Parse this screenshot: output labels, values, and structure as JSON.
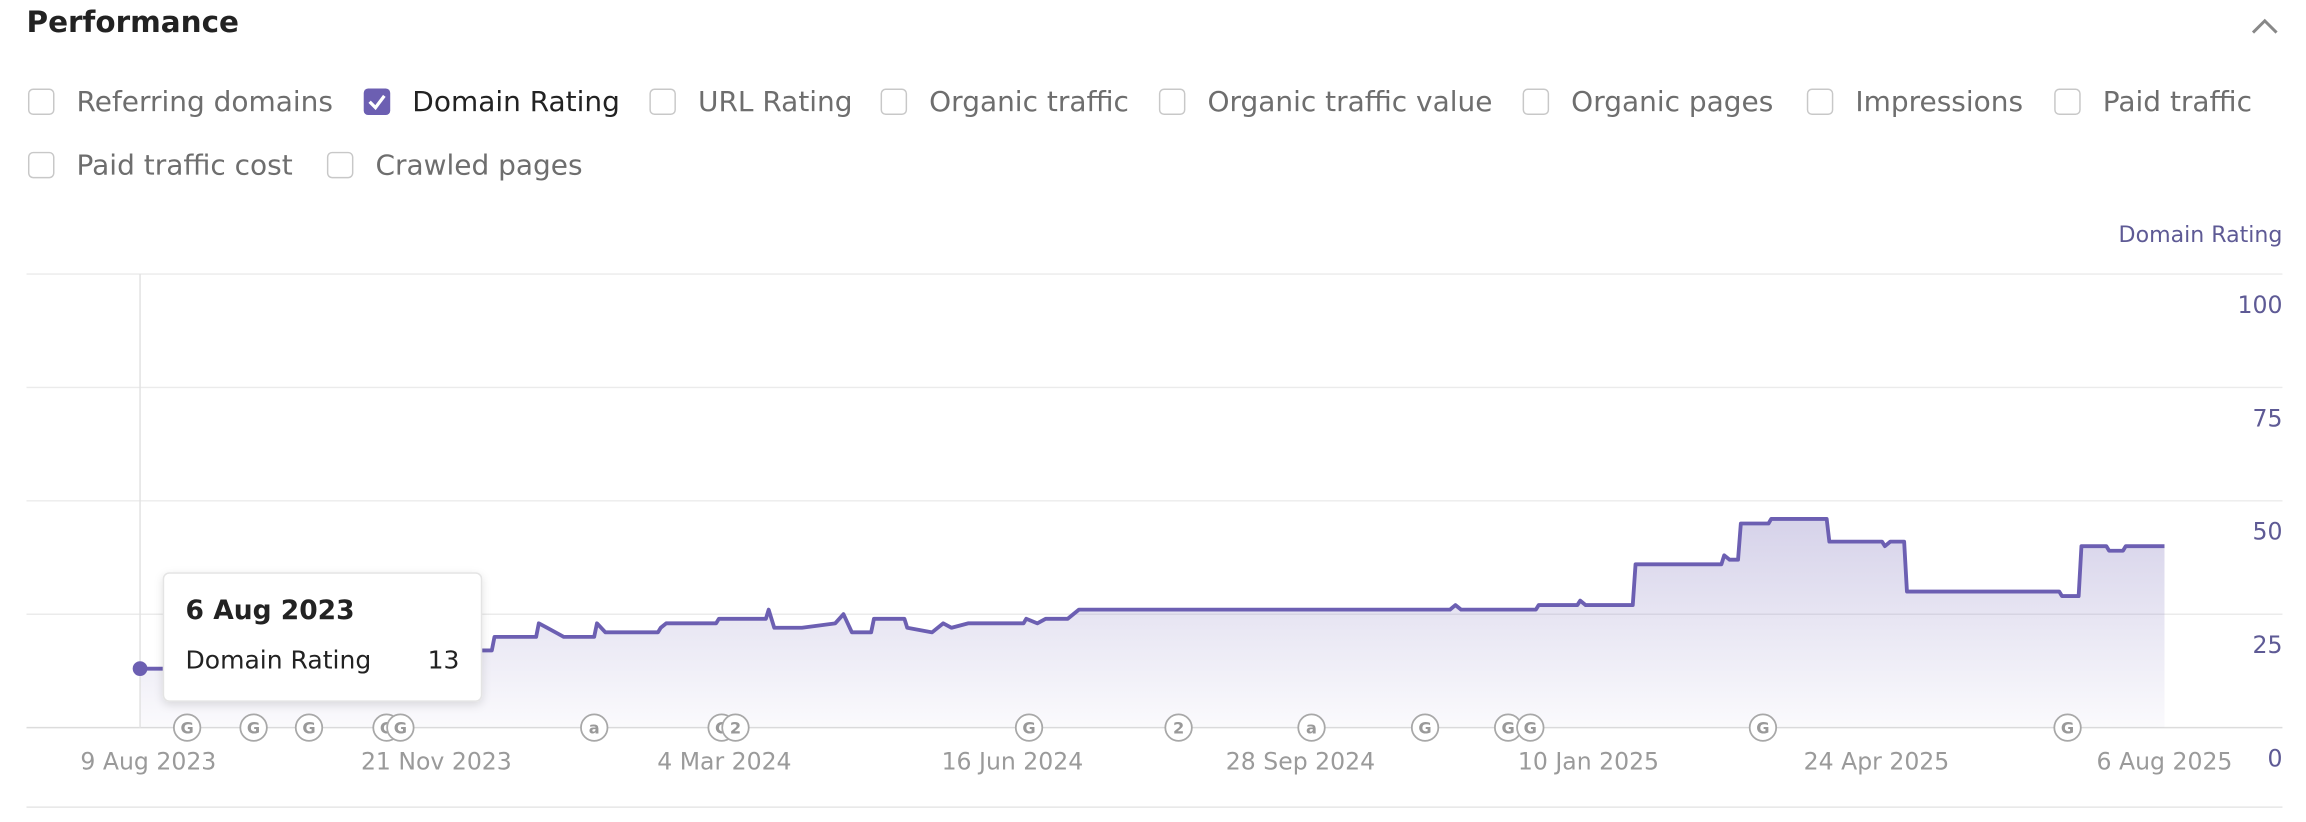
{
  "header": {
    "title": "Performance"
  },
  "toggles": [
    {
      "label": "Referring domains",
      "checked": false
    },
    {
      "label": "Domain Rating",
      "checked": true
    },
    {
      "label": "URL Rating",
      "checked": false
    },
    {
      "label": "Organic traffic",
      "checked": false
    },
    {
      "label": "Organic traffic value",
      "checked": false
    },
    {
      "label": "Organic pages",
      "checked": false
    },
    {
      "label": "Impressions",
      "checked": false
    },
    {
      "label": "Paid traffic",
      "checked": false
    },
    {
      "label": "Paid traffic cost",
      "checked": false
    },
    {
      "label": "Crawled pages",
      "checked": false
    }
  ],
  "tooltip": {
    "title": "6 Aug 2023",
    "label": "Domain Rating"
  },
  "chart_data": {
    "type": "line",
    "y_axis_label": "Domain Rating",
    "xlim": [
      "2023-06-26",
      "2025-08-22"
    ],
    "xticks": [
      {
        "value": "2023-08-09",
        "label": "9 Aug 2023"
      },
      {
        "value": "2023-11-21",
        "label": "21 Nov 2023"
      },
      {
        "value": "2024-03-04",
        "label": "4 Mar 2024"
      },
      {
        "value": "2024-06-16",
        "label": "16 Jun 2024"
      },
      {
        "value": "2024-09-28",
        "label": "28 Sep 2024"
      },
      {
        "value": "2025-01-10",
        "label": "10 Jan 2025"
      },
      {
        "value": "2025-04-24",
        "label": "24 Apr 2025"
      },
      {
        "value": "2025-08-06",
        "label": "6 Aug 2025"
      }
    ],
    "ylim": [
      0,
      100
    ],
    "yticks": [
      0,
      25,
      50,
      75,
      100
    ],
    "grid": true,
    "x": [
      "2023-08-06",
      "2023-11-25",
      "2023-11-26",
      "2023-12-11",
      "2023-12-12",
      "2023-12-27",
      "2023-12-28",
      "2023-12-31",
      "2024-01-06",
      "2024-01-17",
      "2024-01-18",
      "2024-01-21",
      "2024-02-09",
      "2024-02-10",
      "2024-02-12",
      "2024-03-01",
      "2024-03-02",
      "2024-03-19",
      "2024-03-20",
      "2024-03-22",
      "2024-04-01",
      "2024-04-13",
      "2024-04-16",
      "2024-04-19",
      "2024-04-26",
      "2024-04-27",
      "2024-05-08",
      "2024-05-09",
      "2024-05-18",
      "2024-05-22",
      "2024-05-25",
      "2024-05-31",
      "2024-06-20",
      "2024-06-21",
      "2024-06-25",
      "2024-06-28",
      "2024-07-06",
      "2024-07-10",
      "2024-11-21",
      "2024-11-23",
      "2024-11-25",
      "2024-12-22",
      "2024-12-23",
      "2025-01-06",
      "2025-01-07",
      "2025-01-09",
      "2025-01-26",
      "2025-01-27",
      "2025-02-27",
      "2025-02-28",
      "2025-03-02",
      "2025-03-05",
      "2025-03-06",
      "2025-03-16",
      "2025-03-17",
      "2025-04-06",
      "2025-04-07",
      "2025-04-26",
      "2025-04-27",
      "2025-04-29",
      "2025-05-04",
      "2025-05-05",
      "2025-06-29",
      "2025-06-30",
      "2025-07-06",
      "2025-07-07",
      "2025-07-16",
      "2025-07-17",
      "2025-07-22",
      "2025-07-23",
      "2025-08-06"
    ],
    "series": [
      {
        "name": "Domain Rating",
        "color": "#6c5fb2",
        "values": [
          13,
          13,
          17,
          17,
          20,
          20,
          23,
          22,
          20,
          20,
          23,
          21,
          21,
          22,
          23,
          23,
          24,
          24,
          26,
          22,
          22,
          23,
          25,
          21,
          21,
          24,
          24,
          22,
          21,
          23,
          22,
          23,
          23,
          24,
          23,
          24,
          24,
          26,
          26,
          27,
          26,
          26,
          27,
          27,
          28,
          27,
          27,
          36,
          36,
          38,
          37,
          37,
          45,
          45,
          46,
          46,
          41,
          41,
          40,
          41,
          41,
          30,
          30,
          29,
          29,
          40,
          40,
          39,
          39,
          40,
          40
        ]
      }
    ],
    "annotations": [
      {
        "x": "2023-08-23",
        "label": "G"
      },
      {
        "x": "2023-09-16",
        "label": "G"
      },
      {
        "x": "2023-10-06",
        "label": "G"
      },
      {
        "x": "2023-11-03",
        "label": "G"
      },
      {
        "x": "2023-11-08",
        "label": "G"
      },
      {
        "x": "2024-01-17",
        "label": "a"
      },
      {
        "x": "2024-03-03",
        "label": "G"
      },
      {
        "x": "2024-03-08",
        "label": "2"
      },
      {
        "x": "2024-06-22",
        "label": "G"
      },
      {
        "x": "2024-08-15",
        "label": "2"
      },
      {
        "x": "2024-10-02",
        "label": "a"
      },
      {
        "x": "2024-11-12",
        "label": "G"
      },
      {
        "x": "2024-12-12",
        "label": "G"
      },
      {
        "x": "2024-12-20",
        "label": "G"
      },
      {
        "x": "2025-03-14",
        "label": "G"
      },
      {
        "x": "2025-07-02",
        "label": "G"
      }
    ]
  }
}
